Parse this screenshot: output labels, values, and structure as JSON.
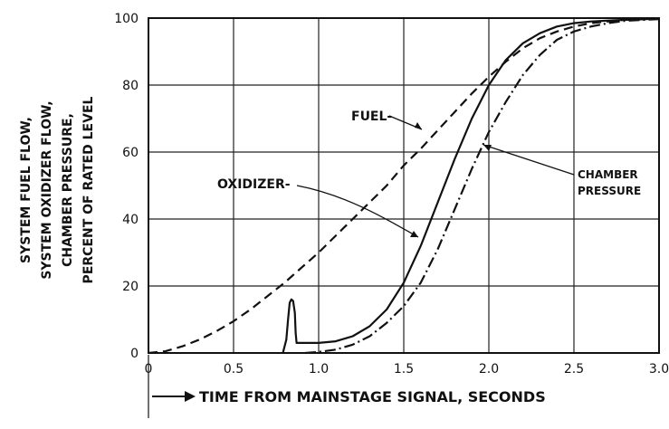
{
  "chart_data": {
    "type": "line",
    "xlabel": "TIME FROM MAINSTAGE SIGNAL, SECONDS",
    "ylabel_lines": [
      "SYSTEM FUEL FLOW,",
      "SYSTEM OXIDIZER FLOW,",
      "CHAMBER PRESSURE,",
      "PERCENT OF RATED LEVEL"
    ],
    "xlim": [
      0,
      3.0
    ],
    "ylim": [
      0,
      100
    ],
    "x_ticks": [
      "0",
      "0.5",
      "1.0",
      "1.5",
      "2.0",
      "2.5",
      "3.0"
    ],
    "y_ticks": [
      "0",
      "20",
      "40",
      "60",
      "80",
      "100"
    ],
    "grid": true,
    "series": [
      {
        "name": "FUEL",
        "style": "dashed",
        "points": [
          [
            0,
            0
          ],
          [
            0.1,
            0.5
          ],
          [
            0.2,
            2
          ],
          [
            0.3,
            4
          ],
          [
            0.4,
            6.5
          ],
          [
            0.5,
            9.5
          ],
          [
            0.6,
            13
          ],
          [
            0.7,
            17
          ],
          [
            0.8,
            21
          ],
          [
            0.9,
            25.5
          ],
          [
            1.0,
            30
          ],
          [
            1.1,
            35
          ],
          [
            1.2,
            40
          ],
          [
            1.3,
            45
          ],
          [
            1.4,
            50
          ],
          [
            1.5,
            56
          ],
          [
            1.6,
            61
          ],
          [
            1.7,
            66.5
          ],
          [
            1.8,
            72
          ],
          [
            1.9,
            77.5
          ],
          [
            2.0,
            82.5
          ],
          [
            2.1,
            87
          ],
          [
            2.2,
            91
          ],
          [
            2.3,
            94
          ],
          [
            2.4,
            96
          ],
          [
            2.5,
            97.5
          ],
          [
            2.6,
            98.5
          ],
          [
            2.7,
            99
          ],
          [
            2.8,
            99.5
          ],
          [
            3.0,
            99.8
          ]
        ]
      },
      {
        "name": "OXIDIZER",
        "style": "solid",
        "points": [
          [
            0.79,
            0
          ],
          [
            0.81,
            4
          ],
          [
            0.82,
            10
          ],
          [
            0.83,
            15
          ],
          [
            0.84,
            16
          ],
          [
            0.85,
            15.5
          ],
          [
            0.86,
            12
          ],
          [
            0.865,
            6
          ],
          [
            0.87,
            3
          ],
          [
            1.0,
            3
          ],
          [
            1.1,
            3.5
          ],
          [
            1.2,
            5
          ],
          [
            1.3,
            8
          ],
          [
            1.4,
            13
          ],
          [
            1.5,
            21
          ],
          [
            1.6,
            32
          ],
          [
            1.7,
            45
          ],
          [
            1.8,
            58
          ],
          [
            1.9,
            70
          ],
          [
            2.0,
            80
          ],
          [
            2.1,
            87.5
          ],
          [
            2.2,
            92.5
          ],
          [
            2.3,
            95.5
          ],
          [
            2.4,
            97.5
          ],
          [
            2.5,
            98.5
          ],
          [
            2.6,
            99
          ],
          [
            2.8,
            99.5
          ],
          [
            3.0,
            99.8
          ]
        ]
      },
      {
        "name": "CHAMBER PRESSURE",
        "style": "dash-dot",
        "points": [
          [
            0.92,
            0
          ],
          [
            1.0,
            0.3
          ],
          [
            1.1,
            1
          ],
          [
            1.2,
            2.5
          ],
          [
            1.3,
            5
          ],
          [
            1.4,
            9
          ],
          [
            1.5,
            14
          ],
          [
            1.6,
            21
          ],
          [
            1.7,
            31
          ],
          [
            1.8,
            43
          ],
          [
            1.9,
            55
          ],
          [
            2.0,
            66
          ],
          [
            2.1,
            75
          ],
          [
            2.2,
            83
          ],
          [
            2.3,
            89
          ],
          [
            2.4,
            93.5
          ],
          [
            2.5,
            96
          ],
          [
            2.6,
            97.5
          ],
          [
            2.7,
            98.5
          ],
          [
            2.8,
            99.2
          ],
          [
            3.0,
            99.7
          ]
        ]
      }
    ],
    "annotations": [
      {
        "text": "FUEL-",
        "series": "FUEL"
      },
      {
        "text": "OXIDIZER-",
        "series": "OXIDIZER"
      },
      {
        "text": "CHAMBER",
        "series": "CHAMBER PRESSURE"
      },
      {
        "text": "PRESSURE",
        "series": "CHAMBER PRESSURE"
      }
    ]
  }
}
